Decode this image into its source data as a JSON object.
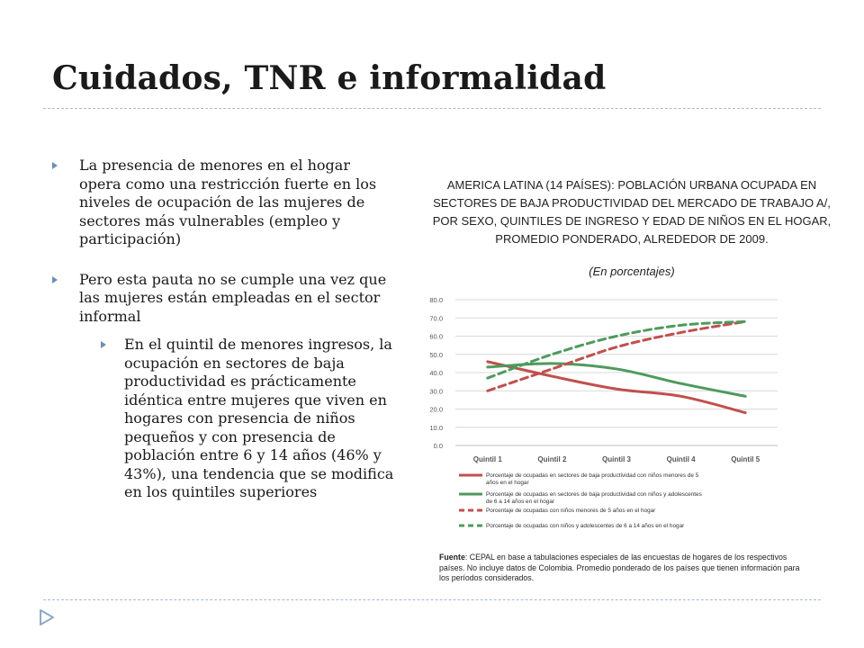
{
  "slide": {
    "title": "Cuidados, TNR e informalidad",
    "bullets": [
      {
        "level": 1,
        "text": "La presencia de menores en el hogar opera como una restricción fuerte en los niveles de ocupación de las mujeres de sectores más vulnerables (empleo y participación)"
      },
      {
        "level": 1,
        "text": "Pero esta pauta no se cumple una vez que las mujeres están empleadas en el sector informal"
      },
      {
        "level": 2,
        "text": "En el quintil de menores ingresos, la ocupación en sectores de baja productividad es prácticamente idéntica entre mujeres que viven en hogares con presencia de niños pequeños y con presencia de población entre 6 y 14 años (46% y 43%), una tendencia que se modifica en los quintiles superiores"
      }
    ],
    "source_label": "Fuente",
    "source_text": ": CEPAL en base a tabulaciones especiales de las encuestas de hogares de los respectivos países. No incluye datos de Colombia. Promedio ponderado de los países que tienen información para los períodos considerados.",
    "nav_icon": "triangle-right-icon"
  },
  "chart_data": {
    "type": "line",
    "title": "AMERICA LATINA (14 PAÍSES): POBLACIÓN URBANA OCUPADA EN SECTORES DE BAJA PRODUCTIVIDAD DEL MERCADO DE TRABAJO A/, POR SEXO, QUINTILES DE INGRESO Y EDAD DE NIÑOS EN EL HOGAR, PROMEDIO PONDERADO, ALREDEDOR DE 2009.",
    "subtitle": "(En porcentajes)",
    "categories": [
      "Quintil 1",
      "Quintil 2",
      "Quintil 3",
      "Quintil 4",
      "Quintil 5"
    ],
    "ylim": [
      0,
      80
    ],
    "yticks": [
      "0.0",
      "10.0",
      "20.0",
      "30.0",
      "40.0",
      "50.0",
      "60.0",
      "70.0",
      "80.0"
    ],
    "grid": true,
    "legend_position": "bottom",
    "series": [
      {
        "name": "Porcentaje de ocupadas en sectores de baja productividad con niños menores de 5 años en el hogar",
        "values": [
          46,
          38,
          31,
          27,
          18
        ],
        "color": "#c0504d",
        "dashed": false
      },
      {
        "name": "Porcentaje de ocupadas en sectores de baja productividad con niños y adolescentes de 6 a 14 años en el hogar",
        "values": [
          43,
          45,
          42,
          34,
          27
        ],
        "color": "#4e9a5e",
        "dashed": false
      },
      {
        "name": "Porcentaje de ocupadas con niños menores de 5 años en el hogar",
        "values": [
          30,
          42,
          54,
          62,
          68
        ],
        "color": "#c0504d",
        "dashed": true
      },
      {
        "name": "Porcentaje de ocupadas con niños y adolescentes de 6 a 14 años en el hogar",
        "values": [
          37,
          50,
          60,
          66,
          68
        ],
        "color": "#4e9a5e",
        "dashed": true
      }
    ]
  }
}
